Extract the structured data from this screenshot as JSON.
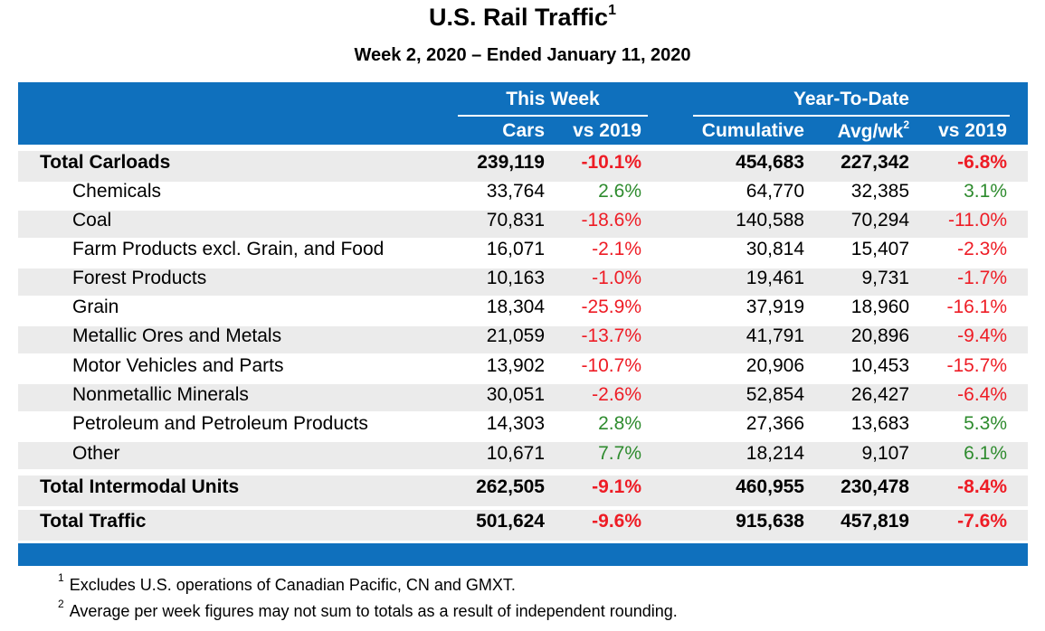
{
  "title": "U.S. Rail Traffic",
  "title_sup": "1",
  "subtitle": "Week 2, 2020 – Ended January 11, 2020",
  "headers": {
    "this_week": "This Week",
    "ytd": "Year-To-Date",
    "cars": "Cars",
    "vs2019_week": "vs 2019",
    "cumulative": "Cumulative",
    "avg": "Avg/wk",
    "avg_sup": "2",
    "vs2019_ytd": "vs 2019"
  },
  "colors": {
    "header_blue": "#0f70bd",
    "negative": "#ee1c25",
    "positive": "#2e8b2e",
    "band": "#ebebeb"
  },
  "rows": [
    {
      "label": "Total Carloads",
      "cars": "239,119",
      "vs_week": "-10.1%",
      "cumulative": "454,683",
      "avg": "227,342",
      "vs_ytd": "-6.8%"
    },
    {
      "label": "Chemicals",
      "cars": "33,764",
      "vs_week": "2.6%",
      "cumulative": "64,770",
      "avg": "32,385",
      "vs_ytd": "3.1%"
    },
    {
      "label": "Coal",
      "cars": "70,831",
      "vs_week": "-18.6%",
      "cumulative": "140,588",
      "avg": "70,294",
      "vs_ytd": "-11.0%"
    },
    {
      "label": "Farm Products excl. Grain, and Food",
      "cars": "16,071",
      "vs_week": "-2.1%",
      "cumulative": "30,814",
      "avg": "15,407",
      "vs_ytd": "-2.3%"
    },
    {
      "label": "Forest Products",
      "cars": "10,163",
      "vs_week": "-1.0%",
      "cumulative": "19,461",
      "avg": "9,731",
      "vs_ytd": "-1.7%"
    },
    {
      "label": "Grain",
      "cars": "18,304",
      "vs_week": "-25.9%",
      "cumulative": "37,919",
      "avg": "18,960",
      "vs_ytd": "-16.1%"
    },
    {
      "label": "Metallic Ores and Metals",
      "cars": "21,059",
      "vs_week": "-13.7%",
      "cumulative": "41,791",
      "avg": "20,896",
      "vs_ytd": "-9.4%"
    },
    {
      "label": "Motor Vehicles and Parts",
      "cars": "13,902",
      "vs_week": "-10.7%",
      "cumulative": "20,906",
      "avg": "10,453",
      "vs_ytd": "-15.7%"
    },
    {
      "label": "Nonmetallic Minerals",
      "cars": "30,051",
      "vs_week": "-2.6%",
      "cumulative": "52,854",
      "avg": "26,427",
      "vs_ytd": "-6.4%"
    },
    {
      "label": "Petroleum and Petroleum Products",
      "cars": "14,303",
      "vs_week": "2.8%",
      "cumulative": "27,366",
      "avg": "13,683",
      "vs_ytd": "5.3%"
    },
    {
      "label": "Other",
      "cars": "10,671",
      "vs_week": "7.7%",
      "cumulative": "18,214",
      "avg": "9,107",
      "vs_ytd": "6.1%"
    },
    {
      "label": "Total Intermodal Units",
      "cars": "262,505",
      "vs_week": "-9.1%",
      "cumulative": "460,955",
      "avg": "230,478",
      "vs_ytd": "-8.4%"
    },
    {
      "label": "Total Traffic",
      "cars": "501,624",
      "vs_week": "-9.6%",
      "cumulative": "915,638",
      "avg": "457,819",
      "vs_ytd": "-7.6%"
    }
  ],
  "footnotes": [
    {
      "num": "1",
      "text": "Excludes U.S. operations of Canadian Pacific, CN and GMXT."
    },
    {
      "num": "2",
      "text": "Average per week figures may not sum to totals as a result of independent rounding."
    }
  ]
}
